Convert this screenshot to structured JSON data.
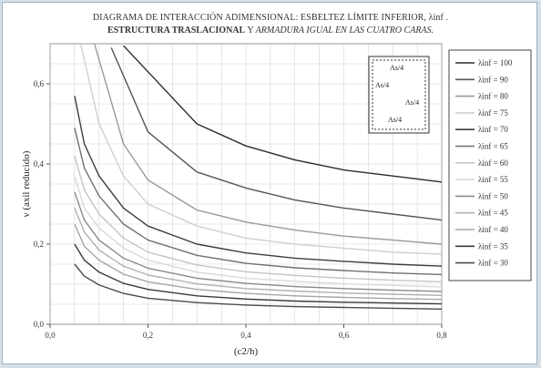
{
  "title": {
    "line1": "DIAGRAMA DE INTERACCIÓN ADIMENSIONAL: ESBELTEZ LÍMITE INFERIOR, λinf .",
    "line2_bold": "ESTRUCTURA TRASLACIONAL",
    "line2_plain": " Y ",
    "line2_italic": "ARMADURA IGUAL EN LAS CUATRO CARAS."
  },
  "inset": {
    "labels": [
      "As/4",
      "As/4",
      "As/4",
      "As/4"
    ]
  },
  "chart_data": {
    "type": "line",
    "xlabel": "(c2/h)",
    "ylabel": "ν (axil reducido)",
    "xlim": [
      0.0,
      0.8
    ],
    "ylim": [
      0.0,
      0.7
    ],
    "x_ticks": [
      "0,0",
      "0,2",
      "0,4",
      "0,6",
      "0,8"
    ],
    "y_ticks": [
      "0,0",
      "0,2",
      "0,4",
      "0,6"
    ],
    "grid": true,
    "legend_position": "right",
    "x": [
      0.05,
      0.07,
      0.1,
      0.15,
      0.2,
      0.3,
      0.4,
      0.5,
      0.6,
      0.7,
      0.8
    ],
    "series": [
      {
        "name": "λinf = 100",
        "color": "#2b2b2b",
        "values": [
          null,
          null,
          null,
          null,
          0.63,
          0.5,
          0.445,
          0.41,
          0.385,
          0.37,
          0.355
        ]
      },
      {
        "name": "λinf = 90",
        "color": "#555555",
        "values": [
          null,
          null,
          null,
          0.62,
          0.48,
          0.38,
          0.34,
          0.31,
          0.29,
          0.275,
          0.26
        ]
      },
      {
        "name": "λinf = 80",
        "color": "#9a9a9a",
        "values": [
          null,
          null,
          0.66,
          0.45,
          0.36,
          0.285,
          0.255,
          0.235,
          0.22,
          0.21,
          0.2
        ]
      },
      {
        "name": "λinf = 75",
        "color": "#cfcfcf",
        "values": [
          null,
          0.66,
          0.5,
          0.37,
          0.3,
          0.245,
          0.215,
          0.2,
          0.19,
          0.18,
          0.175
        ]
      },
      {
        "name": "λinf = 70",
        "color": "#3d3d3d",
        "values": [
          0.57,
          0.45,
          0.37,
          0.29,
          0.245,
          0.2,
          0.178,
          0.165,
          0.157,
          0.15,
          0.145
        ]
      },
      {
        "name": "λinf = 65",
        "color": "#707070",
        "values": [
          0.49,
          0.39,
          0.32,
          0.25,
          0.21,
          0.172,
          0.152,
          0.141,
          0.134,
          0.128,
          0.124
        ]
      },
      {
        "name": "λinf = 60",
        "color": "#c4c4c4",
        "values": [
          0.42,
          0.335,
          0.275,
          0.215,
          0.18,
          0.148,
          0.131,
          0.122,
          0.115,
          0.11,
          0.106
        ]
      },
      {
        "name": "λinf = 55",
        "color": "#d9d9d9",
        "values": [
          0.37,
          0.29,
          0.24,
          0.19,
          0.16,
          0.13,
          0.115,
          0.107,
          0.101,
          0.097,
          0.093
        ]
      },
      {
        "name": "λinf = 50",
        "color": "#8a8a8a",
        "values": [
          0.33,
          0.26,
          0.21,
          0.165,
          0.14,
          0.115,
          0.102,
          0.094,
          0.089,
          0.085,
          0.082
        ]
      },
      {
        "name": "λinf = 45",
        "color": "#b0b0b0",
        "values": [
          0.29,
          0.23,
          0.185,
          0.145,
          0.123,
          0.101,
          0.089,
          0.083,
          0.078,
          0.075,
          0.072
        ]
      },
      {
        "name": "λinf = 40",
        "color": "#a6a6a6",
        "values": [
          0.25,
          0.195,
          0.16,
          0.125,
          0.106,
          0.087,
          0.077,
          0.071,
          0.067,
          0.064,
          0.062
        ]
      },
      {
        "name": "λinf = 35",
        "color": "#3a3a3a",
        "values": [
          0.2,
          0.16,
          0.13,
          0.102,
          0.087,
          0.071,
          0.063,
          0.058,
          0.055,
          0.053,
          0.051
        ]
      },
      {
        "name": "λinf = 30",
        "color": "#4a4a4a",
        "values": [
          0.15,
          0.12,
          0.098,
          0.077,
          0.065,
          0.054,
          0.048,
          0.044,
          0.042,
          0.04,
          0.038
        ]
      }
    ]
  }
}
